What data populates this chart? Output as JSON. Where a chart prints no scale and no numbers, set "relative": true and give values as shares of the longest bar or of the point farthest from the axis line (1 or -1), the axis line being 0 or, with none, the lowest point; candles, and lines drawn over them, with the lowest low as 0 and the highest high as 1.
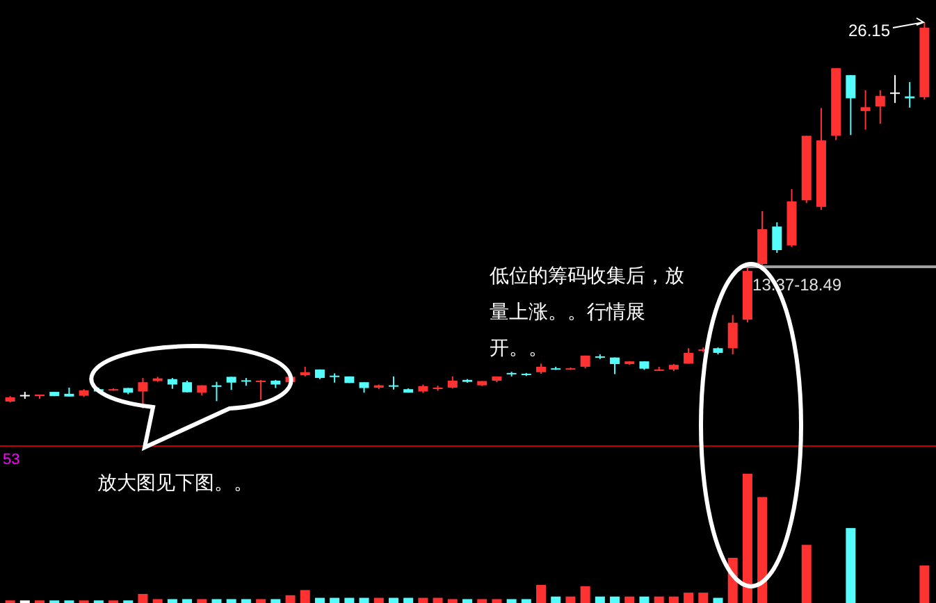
{
  "chart_data": [
    {
      "type": "candlestick",
      "relative": true,
      "categories": [
        null,
        null,
        null,
        null,
        null,
        null,
        null,
        null,
        null,
        null,
        null,
        null,
        null,
        null,
        null,
        null,
        null,
        null,
        null,
        null,
        null,
        null,
        null,
        null,
        null,
        null,
        null,
        null,
        null,
        null,
        null,
        null,
        null,
        null,
        null,
        null,
        null,
        null,
        null,
        null,
        null,
        null,
        null,
        null,
        null,
        null,
        null,
        null,
        null,
        null,
        null,
        null,
        null,
        null,
        null,
        null,
        null,
        null,
        null,
        null,
        null,
        null,
        null
      ],
      "ohlc": [
        [
          0.018,
          0.032,
          0.016,
          0.029
        ],
        [
          0.035,
          0.043,
          0.025,
          0.035
        ],
        [
          0.032,
          0.036,
          0.025,
          0.036
        ],
        [
          0.043,
          0.043,
          0.032,
          0.032
        ],
        [
          0.038,
          0.054,
          0.031,
          0.031
        ],
        [
          0.033,
          0.05,
          0.03,
          0.047
        ],
        [
          0.05,
          0.054,
          0.04,
          0.044
        ],
        [
          0.048,
          0.052,
          0.046,
          0.05
        ],
        [
          0.053,
          0.053,
          0.037,
          0.041
        ],
        [
          0.044,
          0.079,
          0,
          0.068
        ],
        [
          0.071,
          0.082,
          0.069,
          0.078
        ],
        [
          0.076,
          0.079,
          0.051,
          0.062
        ],
        [
          0.068,
          0.072,
          0.042,
          0.042
        ],
        [
          0.041,
          0.06,
          0.034,
          0.06
        ],
        [
          0.06,
          0.069,
          0.019,
          0.056
        ],
        [
          0.082,
          0.082,
          0.048,
          0.067
        ],
        [
          0.073,
          0.079,
          0.059,
          0.071
        ],
        [
          0.07,
          0.074,
          0.023,
          0.072
        ],
        [
          0.072,
          0.074,
          0.053,
          0.062
        ],
        [
          0.068,
          0.082,
          0.068,
          0.082
        ],
        [
          0.086,
          0.108,
          0.083,
          0.094
        ],
        [
          0.101,
          0.101,
          0.076,
          0.079
        ],
        [
          0.085,
          0.091,
          0.067,
          0.083
        ],
        [
          0.083,
          0.083,
          0.066,
          0.066
        ],
        [
          0.068,
          0.068,
          0.041,
          0.053
        ],
        [
          0.054,
          0.062,
          0.05,
          0.06
        ],
        [
          0.06,
          0.083,
          0.049,
          0.058
        ],
        [
          0.05,
          0.052,
          0.041,
          0.041
        ],
        [
          0.044,
          0.062,
          0.04,
          0.058
        ],
        [
          0.052,
          0.059,
          0.046,
          0.054
        ],
        [
          0.054,
          0.083,
          0.052,
          0.072
        ],
        [
          0.074,
          0.076,
          0.067,
          0.069
        ],
        [
          0.06,
          0.071,
          0.058,
          0.071
        ],
        [
          0.072,
          0.083,
          0.068,
          0.083
        ],
        [
          0.092,
          0.095,
          0.083,
          0.09
        ],
        [
          0.09,
          0.092,
          0.084,
          0.088
        ],
        [
          0.094,
          0.116,
          0.09,
          0.108
        ],
        [
          0.104,
          0.108,
          0.1,
          0.102
        ],
        [
          0.102,
          0.106,
          0.1,
          0.104
        ],
        [
          0.108,
          0.137,
          0.104,
          0.137
        ],
        [
          0.135,
          0.14,
          0.128,
          0.133
        ],
        [
          0.132,
          0.132,
          0.089,
          0.115
        ],
        [
          0.115,
          0.122,
          0.113,
          0.122
        ],
        [
          0.122,
          0.122,
          0.1,
          0.103
        ],
        [
          0.1,
          0.108,
          0.097,
          0.101
        ],
        [
          0.101,
          0.115,
          0.097,
          0.113
        ],
        [
          0.116,
          0.156,
          0.116,
          0.144
        ],
        [
          0.15,
          0.158,
          0.146,
          0.153
        ],
        [
          0.156,
          0.158,
          0.14,
          0.144
        ],
        [
          0.156,
          0.242,
          0.14,
          0.222
        ],
        [
          0.23,
          0.363,
          0.223,
          0.356
        ],
        [
          0.374,
          0.511,
          0.367,
          0.464
        ],
        [
          0.471,
          0.482,
          0.403,
          0.41
        ],
        [
          0.422,
          0.568,
          0.418,
          0.536
        ],
        [
          0.539,
          0.706,
          0.532,
          0.706
        ],
        [
          0.522,
          0.778,
          0.514,
          0.694
        ],
        [
          0.706,
          0.881,
          0.695,
          0.881
        ],
        [
          0.863,
          0.863,
          0.708,
          0.803
        ],
        [
          0.77,
          0.824,
          0.722,
          0.78
        ],
        [
          0.782,
          0.824,
          0.737,
          0.809
        ],
        [
          0.818,
          0.863,
          0.791,
          0.818
        ],
        [
          0.808,
          0.845,
          0.779,
          0.803
        ],
        [
          0.806,
          1,
          0.8,
          0.986
        ]
      ],
      "colors": [
        "#ff3232",
        "#ffffff",
        "#ff3232",
        "#54fcfc",
        "#54fcfc",
        "#ff3232",
        "#54fcfc",
        "#ff3232",
        "#54fcfc",
        "#ff3232",
        "#ff3232",
        "#54fcfc",
        "#54fcfc",
        "#ff3232",
        "#54fcfc",
        "#54fcfc",
        "#54fcfc",
        "#ff3232",
        "#54fcfc",
        "#ff3232",
        "#ff3232",
        "#54fcfc",
        "#54fcfc",
        "#54fcfc",
        "#54fcfc",
        "#ff3232",
        "#54fcfc",
        "#54fcfc",
        "#ff3232",
        "#ff3232",
        "#ff3232",
        "#54fcfc",
        "#ff3232",
        "#ff3232",
        "#54fcfc",
        "#54fcfc",
        "#ff3232",
        "#54fcfc",
        "#ff3232",
        "#ff3232",
        "#54fcfc",
        "#54fcfc",
        "#ff3232",
        "#54fcfc",
        "#ff3232",
        "#ff3232",
        "#ff3232",
        "#ff3232",
        "#54fcfc",
        "#ff3232",
        "#ff3232",
        "#ff3232",
        "#54fcfc",
        "#ff3232",
        "#ff3232",
        "#ff3232",
        "#ff3232",
        "#54fcfc",
        "#ff3232",
        "#ff3232",
        "#ffffff",
        "#54fcfc",
        "#ff3232"
      ],
      "ref_lines": [
        {
          "axis": "y",
          "value": 0.367,
          "color": "#a0a0a0"
        }
      ],
      "annotations": [
        "低位的筹码收集后，放量上涨。。行情展开。。",
        "26.15",
        "13.37-18.49"
      ]
    },
    {
      "type": "bar",
      "relative": true,
      "categories": [
        null,
        null,
        null,
        null,
        null,
        null,
        null,
        null,
        null,
        null,
        null,
        null,
        null,
        null,
        null,
        null,
        null,
        null,
        null,
        null,
        null,
        null,
        null,
        null,
        null,
        null,
        null,
        null,
        null,
        null,
        null,
        null,
        null,
        null,
        null,
        null,
        null,
        null,
        null,
        null,
        null,
        null,
        null,
        null,
        null,
        null,
        null,
        null,
        null,
        null,
        null,
        null,
        null,
        null,
        null,
        null,
        null,
        null,
        null,
        null,
        null,
        null,
        null
      ],
      "values": [
        0.02,
        0.02,
        0.02,
        0.02,
        0.02,
        0.02,
        0.02,
        0.02,
        0.02,
        0.07,
        0.03,
        0.03,
        0.03,
        0.03,
        0.03,
        0.03,
        0.03,
        0.03,
        0.03,
        0.06,
        0.1,
        0.04,
        0.04,
        0.04,
        0.04,
        0.04,
        0.04,
        0.04,
        0.04,
        0.04,
        0.03,
        0.03,
        0.03,
        0.03,
        0.03,
        0.03,
        0.14,
        0.05,
        0.05,
        0.13,
        0.05,
        0.05,
        0.05,
        0.05,
        0.05,
        0.05,
        0.08,
        0.08,
        0.04,
        0.35,
        1,
        0.82,
        null,
        null,
        0.45,
        null,
        null,
        0.58,
        null,
        null,
        null,
        null,
        0.29
      ],
      "colors": [
        "#ff3232",
        "#ffffff",
        "#ff3232",
        "#54fcfc",
        "#54fcfc",
        "#ff3232",
        "#54fcfc",
        "#ff3232",
        "#54fcfc",
        "#ff3232",
        "#ff3232",
        "#54fcfc",
        "#54fcfc",
        "#ff3232",
        "#54fcfc",
        "#54fcfc",
        "#54fcfc",
        "#ff3232",
        "#54fcfc",
        "#ff3232",
        "#ff3232",
        "#54fcfc",
        "#54fcfc",
        "#54fcfc",
        "#54fcfc",
        "#ff3232",
        "#54fcfc",
        "#54fcfc",
        "#ff3232",
        "#ff3232",
        "#ff3232",
        "#54fcfc",
        "#ff3232",
        "#ff3232",
        "#54fcfc",
        "#54fcfc",
        "#ff3232",
        "#54fcfc",
        "#ff3232",
        "#ff3232",
        "#54fcfc",
        "#54fcfc",
        "#ff3232",
        "#54fcfc",
        "#ff3232",
        "#ff3232",
        "#ff3232",
        "#ff3232",
        "#54fcfc",
        "#ff3232",
        "#ff3232",
        "#ff3232",
        null,
        null,
        "#ff3232",
        null,
        null,
        "#54fcfc",
        null,
        null,
        null,
        null,
        "#ff3232"
      ],
      "annotations": [
        "53",
        "放大图见下图。。"
      ]
    }
  ]
}
